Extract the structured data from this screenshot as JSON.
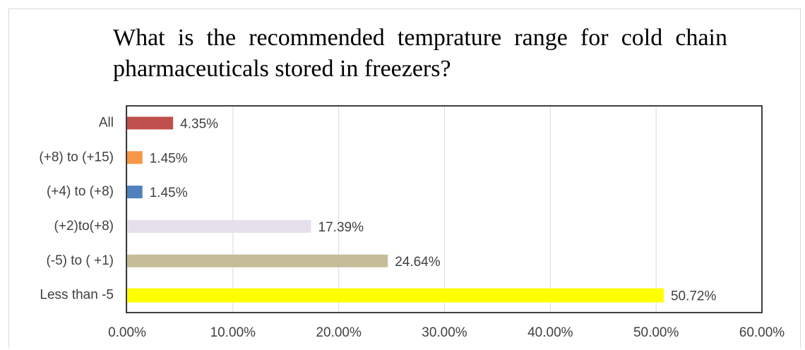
{
  "chart_data": {
    "type": "bar",
    "orientation": "horizontal",
    "title": "What is the recommended temprature range for cold chain pharmaceuticals stored in freezers?",
    "categories": [
      "All",
      "(+8) to (+15)",
      "(+4) to (+8)",
      "(+2)to(+8)",
      "(-5) to ( +1)",
      "Less than -5"
    ],
    "values": [
      4.35,
      1.45,
      1.45,
      17.39,
      24.64,
      50.72
    ],
    "value_labels": [
      "4.35%",
      "1.45%",
      "1.45%",
      "17.39%",
      "24.64%",
      "50.72%"
    ],
    "colors": [
      "#c0504d",
      "#f79646",
      "#4f81bd",
      "#e6e0ec",
      "#c4bd97",
      "#ffff00"
    ],
    "xlim": [
      0,
      60
    ],
    "xticks": [
      {
        "value": 0,
        "label": "0.00%"
      },
      {
        "value": 10,
        "label": "10.00%"
      },
      {
        "value": 20,
        "label": "20.00%"
      },
      {
        "value": 30,
        "label": "30.00%"
      },
      {
        "value": 40,
        "label": "40.00%"
      },
      {
        "value": 50,
        "label": "50.00%"
      },
      {
        "value": 60,
        "label": "60.00%"
      }
    ],
    "grid": true
  }
}
